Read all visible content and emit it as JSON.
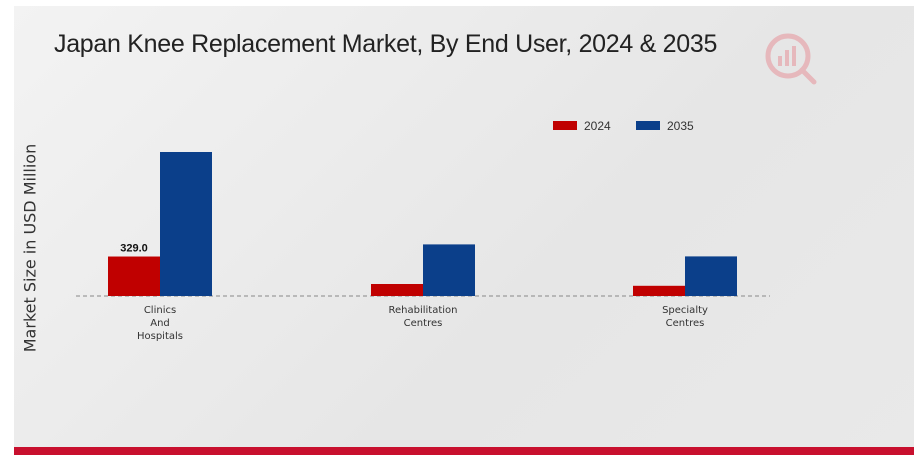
{
  "chart_data": {
    "type": "bar",
    "title": "Japan Knee Replacement Market, By End User, 2024 & 2035",
    "xlabel": "",
    "ylabel": "Market Size in USD Million",
    "categories": [
      [
        "Clinics",
        "And",
        "Hospitals"
      ],
      [
        "Rehabilitation",
        "Centres"
      ],
      [
        "Specialty",
        "Centres"
      ]
    ],
    "series": [
      {
        "name": "2024",
        "color": "#c00000",
        "values": [
          329.0,
          100.0,
          85.0
        ]
      },
      {
        "name": "2035",
        "color": "#0b3f8a",
        "values": [
          1200.0,
          430.0,
          330.0
        ]
      }
    ],
    "data_labels": [
      {
        "series": 0,
        "index": 0,
        "text": "329.0"
      }
    ],
    "ylim": [
      0,
      1400
    ],
    "grid": false,
    "legend_position": "top-right"
  }
}
